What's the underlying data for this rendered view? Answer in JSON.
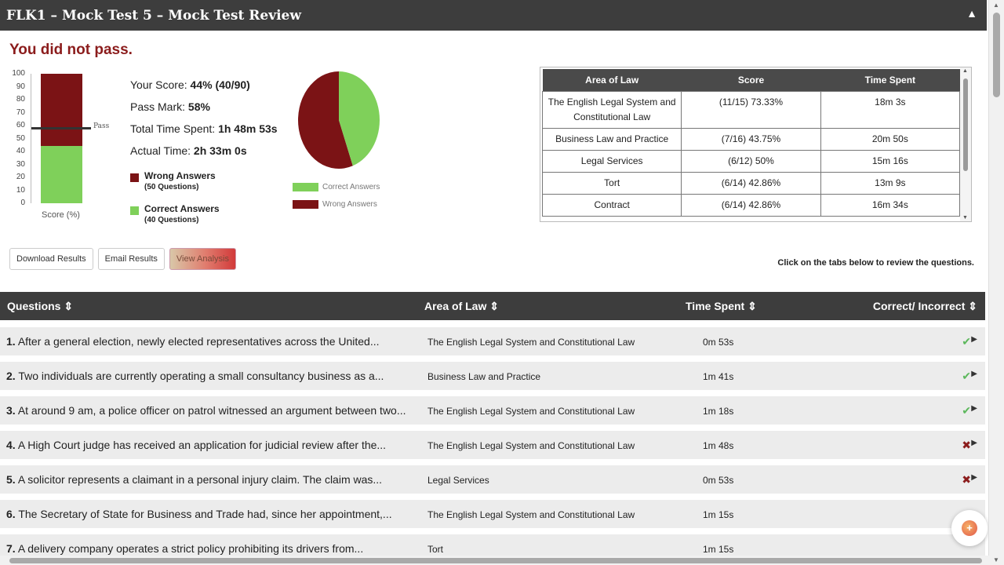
{
  "window": {
    "title": "FLK1 – Mock Test 5 – Mock Test Review",
    "collapse_icon": "chevron-up-icon"
  },
  "result": {
    "heading": "You did not pass."
  },
  "gauge": {
    "ticks": [
      "100",
      "90",
      "80",
      "70",
      "60",
      "50",
      "40",
      "30",
      "20",
      "10",
      "0"
    ],
    "pass_label": "Pass",
    "x_label": "Score (%)",
    "score_percent": 44,
    "pass_percent": 58,
    "colors": {
      "wrong": "#7b1315",
      "correct": "#7fd05a"
    }
  },
  "stats": {
    "score_label": "Your Score:",
    "score_value": "44% (40/90)",
    "pass_label": "Pass Mark:",
    "pass_value": "58%",
    "total_label": "Total Time Spent:",
    "total_value": "1h 48m 53s",
    "actual_label": "Actual Time:",
    "actual_value": "2h 33m 0s"
  },
  "legend": {
    "wrong_title": "Wrong Answers",
    "wrong_count": "(50 Questions)",
    "correct_title": "Correct Answers",
    "correct_count": "(40 Questions)"
  },
  "pie": {
    "correct_label": "Correct Answers",
    "wrong_label": "Wrong Answers",
    "correct_value": 40,
    "wrong_value": 50
  },
  "area_table": {
    "headers": [
      "Area of Law",
      "Score",
      "Time Spent"
    ],
    "rows": [
      [
        "The English Legal System and Constitutional Law",
        "(11/15) 73.33%",
        "18m 3s"
      ],
      [
        "Business Law and Practice",
        "(7/16) 43.75%",
        "20m 50s"
      ],
      [
        "Legal Services",
        "(6/12) 50%",
        "15m 16s"
      ],
      [
        "Tort",
        "(6/14) 42.86%",
        "13m 9s"
      ],
      [
        "Contract",
        "(6/14) 42.86%",
        "16m 34s"
      ]
    ]
  },
  "buttons": {
    "download": "Download Results",
    "email": "Email Results",
    "analysis": "View Analysis"
  },
  "hint": "Click on the tabs below to review the questions.",
  "questions_table": {
    "headers": {
      "questions": "Questions ⇕",
      "area": "Area of Law ⇕",
      "time": "Time Spent ⇕",
      "correct": "Correct/ Incorrect ⇕"
    },
    "rows": [
      {
        "num": "1.",
        "text": "After a general election, newly elected representatives across the United...",
        "area": "The English Legal System and Constitutional Law",
        "time": "0m 53s",
        "result": "correct"
      },
      {
        "num": "2.",
        "text": "Two individuals are currently operating a small consultancy business as a...",
        "area": "Business Law and Practice",
        "time": "1m 41s",
        "result": "correct"
      },
      {
        "num": "3.",
        "text": "At around 9 am, a police officer on patrol witnessed an argument between two...",
        "area": "The English Legal System and Constitutional Law",
        "time": "1m 18s",
        "result": "correct"
      },
      {
        "num": "4.",
        "text": "A High Court judge has received an application for judicial review after the...",
        "area": "The English Legal System and Constitutional Law",
        "time": "1m 48s",
        "result": "incorrect"
      },
      {
        "num": "5.",
        "text": "A solicitor represents a claimant in a personal injury claim. The claim was...",
        "area": "Legal Services",
        "time": "0m 53s",
        "result": "incorrect"
      },
      {
        "num": "6.",
        "text": "The Secretary of State for Business and Trade had, since her appointment,...",
        "area": "The English Legal System and Constitutional Law",
        "time": "1m 15s",
        "result": ""
      },
      {
        "num": "7.",
        "text": "A delivery company operates a strict policy prohibiting its drivers from...",
        "area": "Tort",
        "time": "1m 15s",
        "result": ""
      }
    ]
  }
}
